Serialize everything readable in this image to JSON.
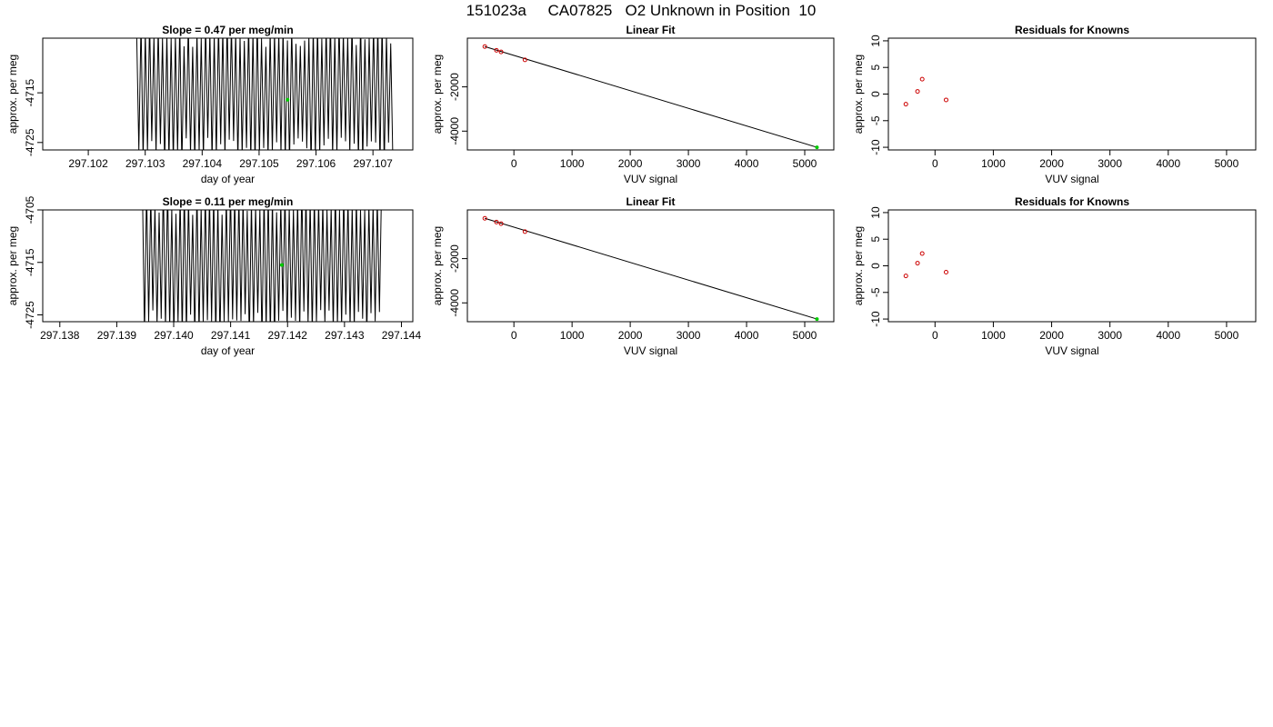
{
  "figure_title": "151023a     CA07825   O2 Unknown in Position  10",
  "colors": {
    "series_line": "#000000",
    "known_points": "#cc0000",
    "unknown_point": "#00cc00",
    "fit_line": "#000000"
  },
  "chart_data": [
    {
      "type": "line",
      "title": "Slope =  0.47  per meg/min",
      "xlabel": "day of year",
      "ylabel": "approx. per meg",
      "xlim": [
        297.1012,
        297.1077
      ],
      "ylim": [
        -4726.5,
        -4704.0
      ],
      "xticks": [
        "297.102",
        "297.103",
        "297.104",
        "297.105",
        "297.106",
        "297.107"
      ],
      "xtick_values": [
        297.102,
        297.103,
        297.104,
        297.105,
        297.106,
        297.107
      ],
      "yticks": [
        "-4725",
        "-4715"
      ],
      "ytick_values": [
        -4725,
        -4715
      ],
      "series_start": 297.10285,
      "series_end": 297.10735,
      "series_points": 120,
      "series_low": -4730,
      "series_high": -4700,
      "unknown_point": {
        "x": 297.1055,
        "y": -4716.4
      }
    },
    {
      "type": "scatter",
      "title": "Linear Fit",
      "xlabel": "VUV signal",
      "ylabel": "approx. per meg",
      "xlim": [
        -800,
        5500
      ],
      "ylim": [
        -4850,
        200
      ],
      "xticks": [
        "0",
        "1000",
        "2000",
        "3000",
        "4000",
        "5000"
      ],
      "xtick_values": [
        0,
        1000,
        2000,
        3000,
        4000,
        5000
      ],
      "yticks": [
        "-4000",
        "-2000"
      ],
      "ytick_values": [
        -4000,
        -2000
      ],
      "knowns": {
        "x": [
          -500,
          -300,
          -220,
          190
        ],
        "y": [
          -180,
          -350,
          -420,
          -780
        ]
      },
      "unknown": {
        "x": 5210,
        "y": -4730
      },
      "fit_line": {
        "x": [
          -500,
          5210
        ],
        "y": [
          -180,
          -4730
        ]
      }
    },
    {
      "type": "scatter",
      "title": "Residuals for Knowns",
      "xlabel": "VUV signal",
      "ylabel": "approx. per meg",
      "xlim": [
        -800,
        5500
      ],
      "ylim": [
        -10.5,
        10.5
      ],
      "xticks": [
        "0",
        "1000",
        "2000",
        "3000",
        "4000",
        "5000"
      ],
      "xtick_values": [
        0,
        1000,
        2000,
        3000,
        4000,
        5000
      ],
      "yticks": [
        "-10",
        "-5",
        "0",
        "5",
        "10"
      ],
      "ytick_values": [
        -10,
        -5,
        0,
        5,
        10
      ],
      "points": {
        "x": [
          -500,
          -300,
          -220,
          190
        ],
        "y": [
          -1.9,
          0.5,
          2.8,
          -1.1
        ]
      }
    },
    {
      "type": "line",
      "title": "Slope =  0.11  per meg/min",
      "xlabel": "day of year",
      "ylabel": "approx. per meg",
      "xlim": [
        297.1377,
        297.1442
      ],
      "ylim": [
        -4726.3,
        -4705.0
      ],
      "xticks": [
        "297.138",
        "297.139",
        "297.140",
        "297.141",
        "297.142",
        "297.143",
        "297.144"
      ],
      "xtick_values": [
        297.138,
        297.139,
        297.14,
        297.141,
        297.142,
        297.143,
        297.144
      ],
      "yticks": [
        "-4725",
        "-4715",
        "-4705"
      ],
      "ytick_values": [
        -4725,
        -4715,
        -4705
      ],
      "series_start": 297.13945,
      "series_end": 297.14365,
      "series_points": 115,
      "series_low": -4730,
      "series_high": -4700,
      "unknown_point": {
        "x": 297.1419,
        "y": -4715.5
      }
    },
    {
      "type": "scatter",
      "title": "Linear Fit",
      "xlabel": "VUV signal",
      "ylabel": "approx. per meg",
      "xlim": [
        -800,
        5500
      ],
      "ylim": [
        -4850,
        200
      ],
      "xticks": [
        "0",
        "1000",
        "2000",
        "3000",
        "4000",
        "5000"
      ],
      "xtick_values": [
        0,
        1000,
        2000,
        3000,
        4000,
        5000
      ],
      "yticks": [
        "-4000",
        "-2000"
      ],
      "ytick_values": [
        -4000,
        -2000
      ],
      "knowns": {
        "x": [
          -500,
          -300,
          -220,
          190
        ],
        "y": [
          -180,
          -350,
          -420,
          -780
        ]
      },
      "unknown": {
        "x": 5210,
        "y": -4730
      },
      "fit_line": {
        "x": [
          -500,
          5210
        ],
        "y": [
          -180,
          -4730
        ]
      }
    },
    {
      "type": "scatter",
      "title": "Residuals for Knowns",
      "xlabel": "VUV signal",
      "ylabel": "approx. per meg",
      "xlim": [
        -800,
        5500
      ],
      "ylim": [
        -10.5,
        10.5
      ],
      "xticks": [
        "0",
        "1000",
        "2000",
        "3000",
        "4000",
        "5000"
      ],
      "xtick_values": [
        0,
        1000,
        2000,
        3000,
        4000,
        5000
      ],
      "yticks": [
        "-10",
        "-5",
        "0",
        "5",
        "10"
      ],
      "ytick_values": [
        -10,
        -5,
        0,
        5,
        10
      ],
      "points": {
        "x": [
          -500,
          -300,
          -220,
          190
        ],
        "y": [
          -1.9,
          0.5,
          2.3,
          -1.2
        ]
      }
    }
  ]
}
